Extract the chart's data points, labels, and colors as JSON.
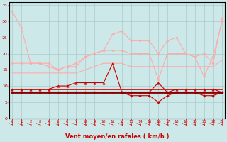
{
  "xlabel": "Vent moyen/en rafales ( km/h )",
  "background_color": "#cce8e8",
  "grid_color": "#aacccc",
  "x": [
    0,
    1,
    2,
    3,
    4,
    5,
    6,
    7,
    8,
    9,
    10,
    11,
    12,
    13,
    14,
    15,
    16,
    17,
    18,
    19,
    20,
    21,
    22,
    23
  ],
  "series": [
    {
      "y": [
        33,
        28,
        17,
        17,
        17,
        15,
        16,
        16,
        19,
        20,
        21,
        26,
        27,
        24,
        24,
        24,
        20,
        24,
        25,
        20,
        19,
        20,
        17,
        31
      ],
      "color": "#ffaaaa",
      "lw": 0.8,
      "marker": "D",
      "ms": 1.8
    },
    {
      "y": [
        17,
        17,
        17,
        17,
        16,
        15,
        16,
        17,
        19,
        20,
        21,
        21,
        21,
        20,
        20,
        20,
        12,
        20,
        20,
        20,
        19,
        13,
        19,
        30
      ],
      "color": "#ffaaaa",
      "lw": 0.8,
      "marker": "D",
      "ms": 1.8
    },
    {
      "y": [
        14,
        14,
        14,
        14,
        14,
        14,
        14,
        14,
        15,
        16,
        17,
        17,
        17,
        16,
        16,
        16,
        16,
        16,
        16,
        16,
        16,
        16,
        16,
        18
      ],
      "color": "#ffaaaa",
      "lw": 0.8,
      "marker": null,
      "ms": 0
    },
    {
      "y": [
        9,
        9,
        9,
        9,
        9,
        10,
        10,
        11,
        11,
        11,
        11,
        17,
        8,
        8,
        8,
        8,
        11,
        8,
        9,
        9,
        9,
        9,
        9,
        8
      ],
      "color": "#cc0000",
      "lw": 0.8,
      "marker": "^",
      "ms": 2.5
    },
    {
      "y": [
        9,
        9,
        9,
        9,
        9,
        9,
        9,
        9,
        9,
        9,
        9,
        9,
        9,
        9,
        9,
        9,
        9,
        9,
        9,
        9,
        9,
        9,
        9,
        9
      ],
      "color": "#cc0000",
      "lw": 1.2,
      "marker": null,
      "ms": 0
    },
    {
      "y": [
        8,
        8,
        8,
        8,
        8,
        8,
        8,
        8,
        8,
        8,
        8,
        8,
        8,
        8,
        8,
        8,
        8,
        8,
        8,
        8,
        8,
        8,
        8,
        8
      ],
      "color": "#cc0000",
      "lw": 1.5,
      "marker": null,
      "ms": 0
    },
    {
      "y": [
        8,
        8,
        8,
        8,
        8,
        8,
        8,
        8,
        8,
        8,
        8,
        8,
        8,
        7,
        7,
        7,
        5,
        7,
        8,
        8,
        8,
        7,
        7,
        8
      ],
      "color": "#cc0000",
      "lw": 0.8,
      "marker": "D",
      "ms": 1.8
    },
    {
      "y": [
        8,
        8,
        8,
        8,
        8,
        8,
        8,
        8,
        8,
        8,
        8,
        8,
        8,
        8,
        8,
        8,
        8,
        8,
        8,
        8,
        8,
        8,
        8,
        8
      ],
      "color": "#880000",
      "lw": 2.0,
      "marker": null,
      "ms": 0
    }
  ],
  "ylim": [
    0,
    36
  ],
  "yticks": [
    0,
    5,
    10,
    15,
    20,
    25,
    30,
    35
  ],
  "xlim": [
    -0.3,
    23.3
  ],
  "ylabel_fontsize": 5,
  "xlabel_fontsize": 6
}
